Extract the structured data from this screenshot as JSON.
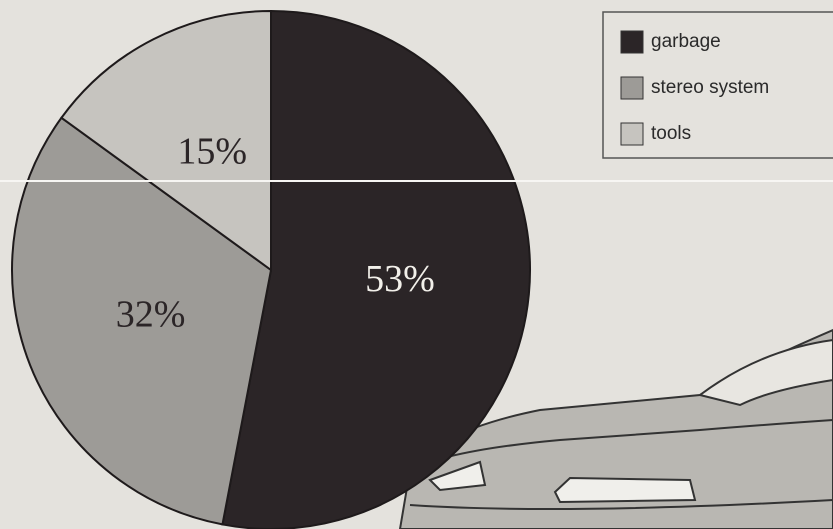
{
  "chart_data": {
    "type": "pie",
    "categories": [
      "garbage",
      "stereo system",
      "tools"
    ],
    "values": [
      53,
      32,
      15
    ],
    "value_labels": [
      "53%",
      "32%",
      "15%"
    ],
    "colors": [
      "#2b2527",
      "#9d9b97",
      "#c6c4bf"
    ],
    "label_colors": [
      "#f2f0ea",
      "#2b2527",
      "#2b2527"
    ]
  }
}
